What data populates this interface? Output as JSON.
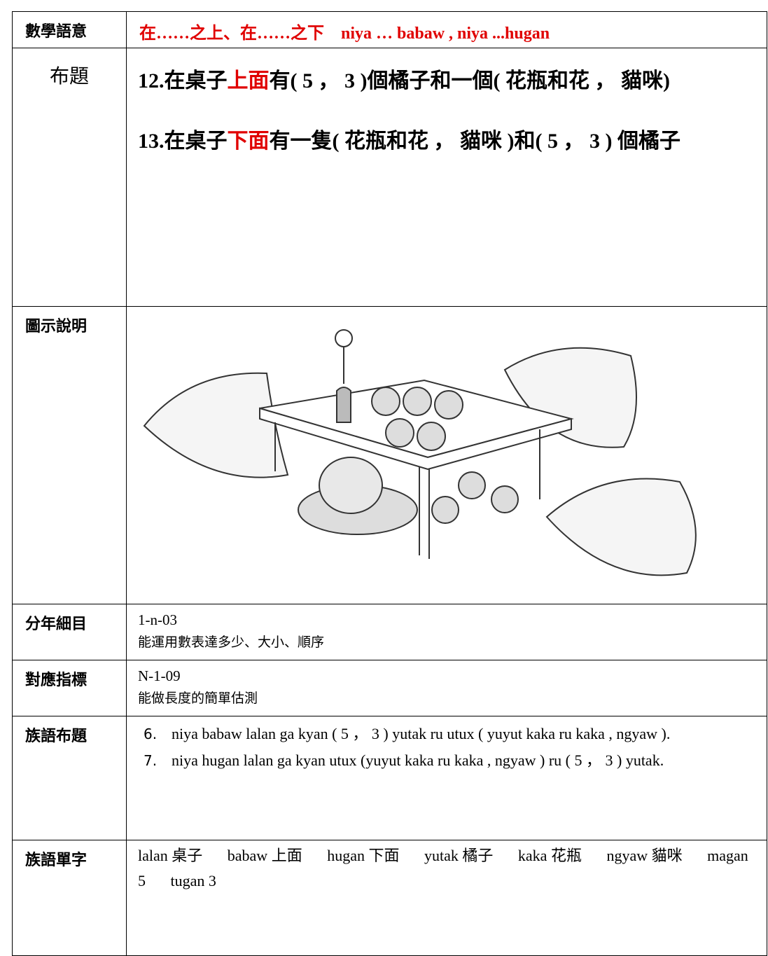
{
  "table": {
    "rows": [
      {
        "label": "數學語意",
        "content": "在……之上、在……之下　niya … babaw , niya ...hugan"
      },
      {
        "label": "布題",
        "problems": [
          {
            "number": "12.",
            "before": "在桌子",
            "highlight": "上面",
            "after": "有( 5 ， 3 )個橘子和一個( 花瓶和花 ， 貓咪)"
          },
          {
            "number": "13.",
            "before": "在桌子",
            "highlight": "下面",
            "after": "有一隻( 花瓶和花 ， 貓咪 )和( 5 ， 3 ) 個橘子"
          }
        ]
      },
      {
        "label": "圖示說明"
      },
      {
        "label": "分年細目",
        "code": "1-n-03",
        "description": "能運用數表達多少、大小、順序"
      },
      {
        "label": "對應指標",
        "code": "N-1-09",
        "description": "能做長度的簡單估測"
      },
      {
        "label": "族語布題",
        "items": [
          {
            "number": "6.",
            "text": "niya babaw lalan ga kyan ( 5 ， 3 ) yutak ru utux ( yuyut kaka ru kaka , ngyaw )."
          },
          {
            "number": "7.",
            "text": "niya hugan lalan ga kyan utux (yuyut kaka ru kaka , ngyaw ) ru ( 5 ， 3 ) yutak."
          }
        ]
      },
      {
        "label": "族語單字",
        "words": [
          {
            "word": "lalan",
            "meaning": "桌子"
          },
          {
            "word": "babaw",
            "meaning": "上面"
          },
          {
            "word": "hugan",
            "meaning": "下面"
          },
          {
            "word": "yutak",
            "meaning": "橘子"
          },
          {
            "word": "kaka",
            "meaning": "花瓶"
          },
          {
            "word": "ngyaw",
            "meaning": "貓咪"
          },
          {
            "word": "magan",
            "meaning": "5"
          },
          {
            "word": "tugan",
            "meaning": "3"
          }
        ]
      }
    ]
  }
}
